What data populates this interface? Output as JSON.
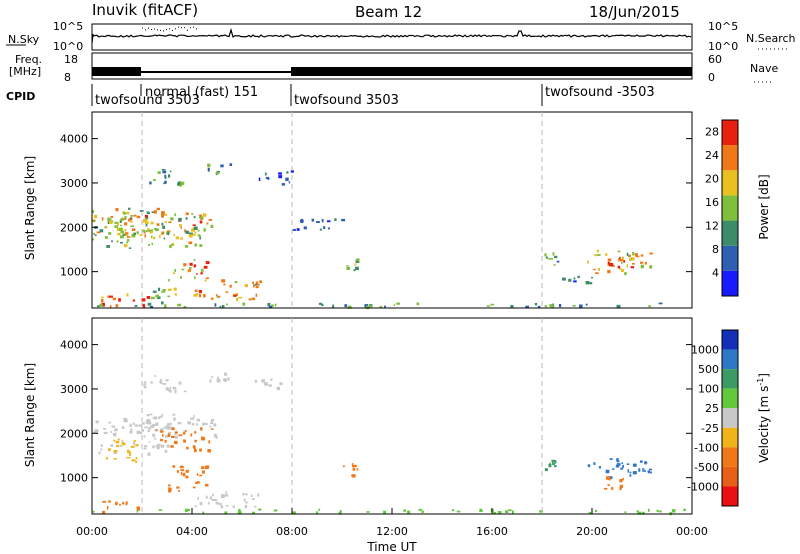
{
  "header": {
    "station": "Inuvik (fitACF)",
    "beam": "Beam 12",
    "date": "18/Jun/2015"
  },
  "top_panels": {
    "nsky_label": "N.Sky",
    "nsearch_label": "N.Search",
    "freq_label_1": "Freq.",
    "freq_label_2": "[MHz]",
    "nave_label": "Nave",
    "cpid_label": "CPID",
    "noise_ticks": [
      "10^5",
      "10^0"
    ],
    "freq_ticks": [
      "18",
      "8"
    ],
    "nave_ticks": [
      "60",
      "0"
    ],
    "cpid_segments": [
      {
        "label": "twofsound 3503",
        "start": 0.0
      },
      {
        "label": "normal (fast) 151",
        "start": 2.0
      },
      {
        "label": "twofsound 3503",
        "start": 8.0
      },
      {
        "label": "twofsound -3503",
        "start": 18.0
      }
    ]
  },
  "chart_data": [
    {
      "type": "heatmap",
      "panel": "power",
      "xlabel": "",
      "ylabel": "Slant Range [km]",
      "xlim": [
        0,
        24
      ],
      "ylim": [
        180,
        4600
      ],
      "yticks": [
        "1000",
        "2000",
        "3000",
        "4000"
      ],
      "colorbar": {
        "label": "Power [dB]",
        "ticks": [
          "4",
          "8",
          "12",
          "16",
          "20",
          "24",
          "28"
        ],
        "range": [
          0,
          30
        ],
        "colors": [
          "#1a1aff",
          "#2f5fb0",
          "#3c8c6a",
          "#7fbf3c",
          "#e8c020",
          "#f07818",
          "#e82010"
        ]
      },
      "blobs": [
        {
          "t0": 0.0,
          "t1": 3.0,
          "r0": 1700,
          "r1": 2400,
          "v": 18
        },
        {
          "t0": 0.0,
          "t1": 1.6,
          "r0": 1500,
          "r1": 2200,
          "v": 14
        },
        {
          "t0": 1.2,
          "t1": 4.8,
          "r0": 1750,
          "r1": 2300,
          "v": 20
        },
        {
          "t0": 2.0,
          "t1": 4.8,
          "r0": 1550,
          "r1": 2000,
          "v": 16
        },
        {
          "t0": 3.0,
          "t1": 4.6,
          "r0": 750,
          "r1": 1250,
          "v": 22
        },
        {
          "t0": 4.0,
          "t1": 6.8,
          "r0": 350,
          "r1": 800,
          "v": 20
        },
        {
          "t0": 0.3,
          "t1": 2.3,
          "r0": 180,
          "r1": 500,
          "v": 26
        },
        {
          "t0": 2.3,
          "t1": 3.5,
          "r0": 200,
          "r1": 600,
          "v": 16
        },
        {
          "t0": 2.0,
          "t1": 3.6,
          "r0": 2900,
          "r1": 3300,
          "v": 10
        },
        {
          "t0": 4.6,
          "t1": 5.5,
          "r0": 3150,
          "r1": 3400,
          "v": 10
        },
        {
          "t0": 6.5,
          "t1": 8.0,
          "r0": 2950,
          "r1": 3250,
          "v": 8
        },
        {
          "t0": 8.0,
          "t1": 10.0,
          "r0": 1900,
          "r1": 2200,
          "v": 8
        },
        {
          "t0": 10.0,
          "t1": 10.6,
          "r0": 1000,
          "r1": 1300,
          "v": 14
        },
        {
          "t0": 18.0,
          "t1": 18.6,
          "r0": 1100,
          "r1": 1400,
          "v": 12
        },
        {
          "t0": 19.8,
          "t1": 22.4,
          "r0": 900,
          "r1": 1450,
          "v": 18
        },
        {
          "t0": 20.5,
          "t1": 21.8,
          "r0": 1050,
          "r1": 1300,
          "v": 26
        },
        {
          "t0": 18.8,
          "t1": 20.2,
          "r0": 700,
          "r1": 900,
          "v": 8
        },
        {
          "t0": 0.0,
          "t1": 24.0,
          "r0": 180,
          "r1": 260,
          "v": 12
        }
      ]
    },
    {
      "type": "heatmap",
      "panel": "velocity",
      "xlabel": "Time UT",
      "ylabel": "Slant Range [km]",
      "xlim": [
        0,
        24
      ],
      "ylim": [
        180,
        4600
      ],
      "xticks": [
        "00:00",
        "04:00",
        "08:00",
        "12:00",
        "16:00",
        "20:00",
        "00:00"
      ],
      "yticks": [
        "1000",
        "2000",
        "3000",
        "4000"
      ],
      "colorbar": {
        "label": "Velocity",
        "label_unit": "m s",
        "label_exp": "-1",
        "ticks": [
          "1000",
          "500",
          "100",
          "25",
          "-25",
          "-100",
          "-500",
          "-1000"
        ],
        "colors": [
          "#1430b8",
          "#2f78c8",
          "#3c9a64",
          "#62c83c",
          "#c8c8c8",
          "#f0b418",
          "#f07818",
          "#e86018",
          "#e81010"
        ]
      },
      "blobs": [
        {
          "t0": 0.0,
          "t1": 3.0,
          "r0": 1500,
          "r1": 2400,
          "v": 0
        },
        {
          "t0": 2.0,
          "t1": 5.2,
          "r0": 1900,
          "r1": 2400,
          "v": 0
        },
        {
          "t0": 2.5,
          "t1": 4.8,
          "r0": 1600,
          "r1": 2100,
          "v": -300
        },
        {
          "t0": 0.5,
          "t1": 1.8,
          "r0": 1300,
          "r1": 1900,
          "v": -50
        },
        {
          "t0": 3.0,
          "t1": 4.6,
          "r0": 650,
          "r1": 1250,
          "v": -300
        },
        {
          "t0": 4.0,
          "t1": 6.8,
          "r0": 300,
          "r1": 700,
          "v": 0
        },
        {
          "t0": 0.3,
          "t1": 2.0,
          "r0": 180,
          "r1": 450,
          "v": -300
        },
        {
          "t0": 2.0,
          "t1": 3.8,
          "r0": 2900,
          "r1": 3300,
          "v": 0
        },
        {
          "t0": 4.6,
          "t1": 5.5,
          "r0": 3150,
          "r1": 3400,
          "v": 0
        },
        {
          "t0": 6.5,
          "t1": 7.5,
          "r0": 3000,
          "r1": 3200,
          "v": 0
        },
        {
          "t0": 18.0,
          "t1": 18.8,
          "r0": 1150,
          "r1": 1400,
          "v": 200
        },
        {
          "t0": 19.8,
          "t1": 22.4,
          "r0": 950,
          "r1": 1400,
          "v": 700
        },
        {
          "t0": 20.4,
          "t1": 21.6,
          "r0": 700,
          "r1": 1000,
          "v": -300
        },
        {
          "t0": 10.0,
          "t1": 10.6,
          "r0": 1000,
          "r1": 1300,
          "v": -150
        },
        {
          "t0": 0.0,
          "t1": 24.0,
          "r0": 180,
          "r1": 260,
          "v": 60
        }
      ]
    }
  ]
}
